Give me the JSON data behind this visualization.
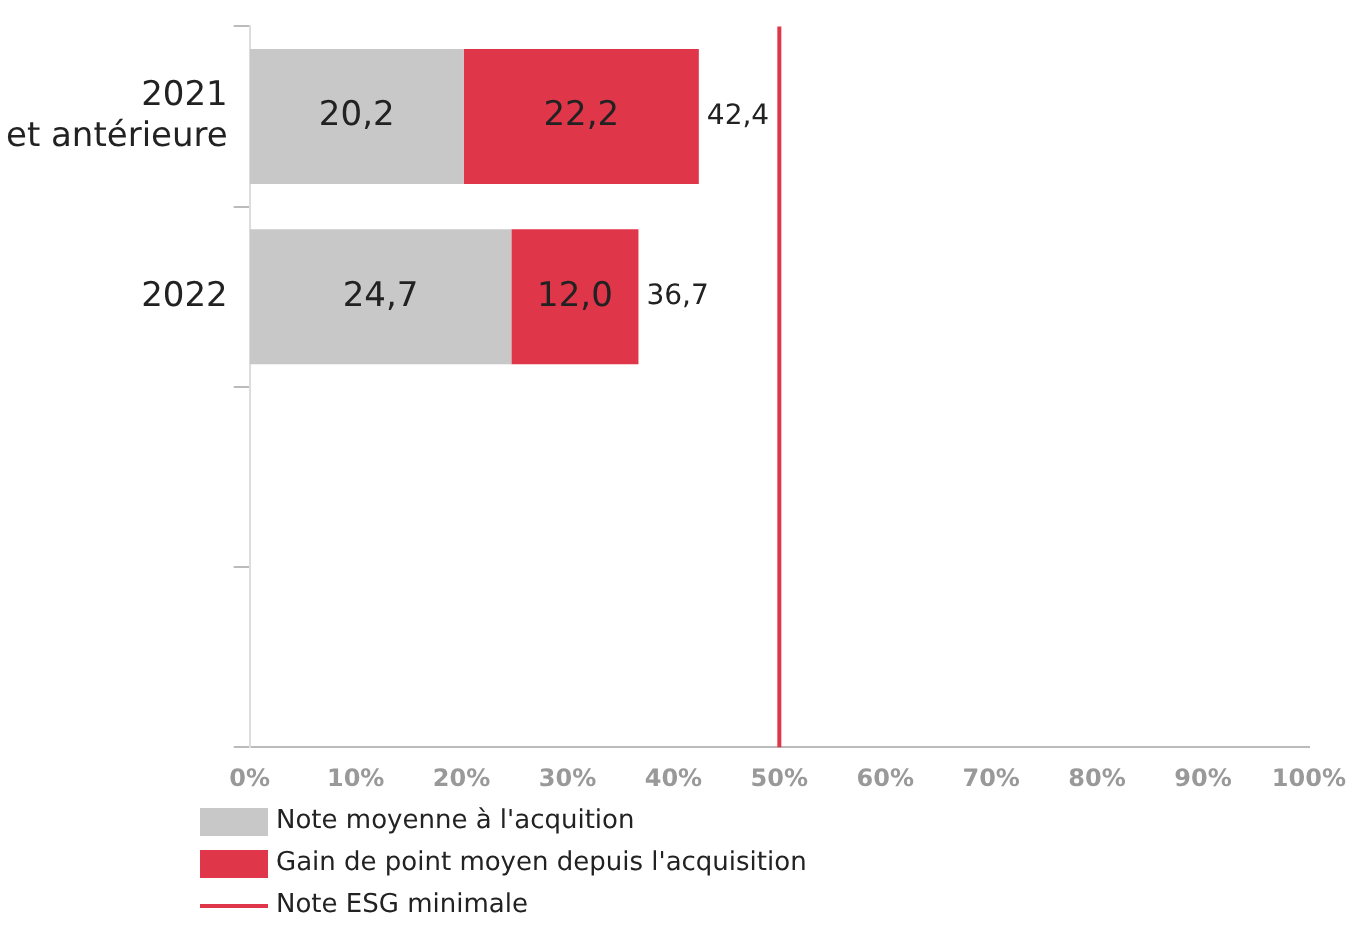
{
  "chart_data": {
    "type": "bar",
    "orientation": "horizontal",
    "stacked": true,
    "categories": [
      "2021\net antérieure",
      "2022",
      null,
      null
    ],
    "series": [
      {
        "name": "Note moyenne à l'acquition",
        "color": "#c8c8c8",
        "values": [
          20.2,
          24.7,
          null,
          null
        ],
        "value_labels": [
          "20,2",
          "24,7",
          null,
          null
        ]
      },
      {
        "name": "Gain de point moyen depuis l'acquisition",
        "color": "#e0364a",
        "values": [
          22.2,
          12.0,
          null,
          null
        ],
        "value_labels": [
          "22,2",
          "12,0",
          null,
          null
        ]
      }
    ],
    "totals": [
      "42,4",
      "36,7",
      null,
      null
    ],
    "xlim": [
      0,
      100
    ],
    "xticks": [
      {
        "value": 0,
        "label": "0%"
      },
      {
        "value": 10,
        "label": "10%"
      },
      {
        "value": 20,
        "label": "20%"
      },
      {
        "value": 30,
        "label": "30%"
      },
      {
        "value": 40,
        "label": "40%"
      },
      {
        "value": 50,
        "label": "50%"
      },
      {
        "value": 60,
        "label": "60%"
      },
      {
        "value": 70,
        "label": "70%"
      },
      {
        "value": 80,
        "label": "80%"
      },
      {
        "value": 90,
        "label": "90%"
      },
      {
        "value": 100,
        "label": "100%"
      }
    ],
    "ref_lines": [
      {
        "axis": "x",
        "value": 50,
        "label": "Note ESG minimale",
        "color": "#e0364a"
      }
    ],
    "grid": false,
    "legend": "bottom"
  }
}
